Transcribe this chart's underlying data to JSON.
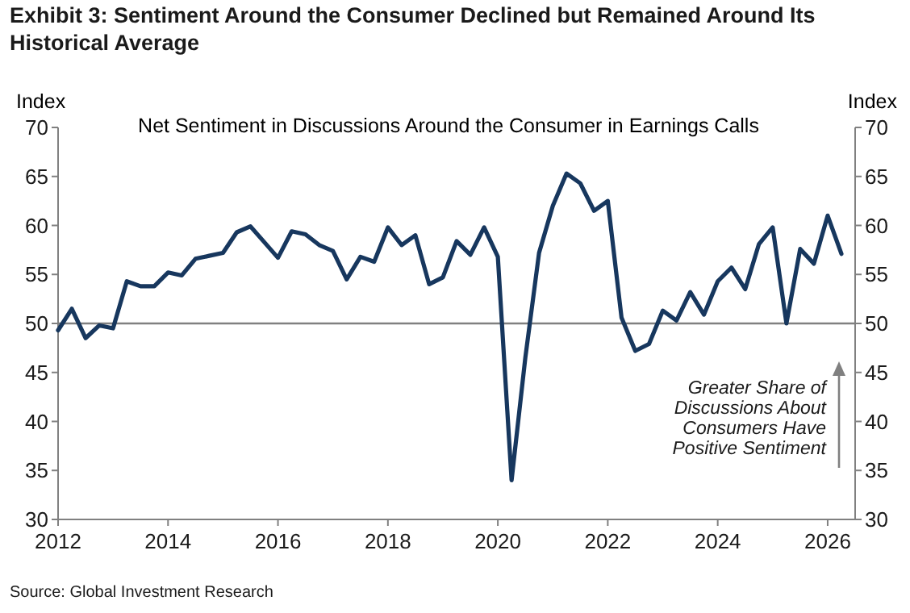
{
  "chart_data": {
    "type": "line",
    "title": "Exhibit 3: Sentiment Around the Consumer Declined but Remained Around Its Historical Average",
    "subtitle": "Net Sentiment in Discussions Around the Consumer in Earnings Calls",
    "ylabel": "Index",
    "y2label": "Index",
    "x": [
      2012,
      2012.25,
      2012.5,
      2012.75,
      2013,
      2013.25,
      2013.5,
      2013.75,
      2014,
      2014.25,
      2014.5,
      2014.75,
      2015,
      2015.25,
      2015.5,
      2015.75,
      2016,
      2016.25,
      2016.5,
      2016.75,
      2017,
      2017.25,
      2017.5,
      2017.75,
      2018,
      2018.25,
      2018.5,
      2018.75,
      2019,
      2019.25,
      2019.5,
      2019.75,
      2020,
      2020.25,
      2020.5,
      2020.75,
      2021,
      2021.25,
      2021.5,
      2021.75,
      2022,
      2022.25,
      2022.5,
      2022.75,
      2023,
      2023.25,
      2023.5,
      2023.75,
      2024,
      2024.25,
      2024.5,
      2024.75,
      2025,
      2025.25,
      2025.5,
      2025.75,
      2026,
      2026.25
    ],
    "series": [
      {
        "color": "#17375e",
        "values": [
          49.3,
          51.5,
          48.5,
          49.8,
          49.5,
          54.3,
          53.8,
          53.8,
          55.2,
          54.9,
          56.6,
          56.9,
          57.2,
          59.3,
          59.9,
          58.3,
          56.7,
          59.4,
          59.1,
          58.0,
          57.4,
          54.5,
          56.8,
          56.3,
          59.8,
          58.0,
          59.0,
          54.0,
          54.7,
          58.4,
          57.0,
          59.8,
          56.8,
          34.0,
          46.5,
          57.2,
          62.0,
          65.3,
          64.3,
          61.5,
          62.5,
          50.6,
          47.2,
          47.9,
          51.3,
          50.3,
          53.2,
          50.9,
          54.3,
          55.7,
          53.5,
          58.1,
          59.8,
          50.0,
          57.6,
          56.1,
          61.0,
          57.1
        ]
      }
    ],
    "xlim": [
      2012,
      2026.5
    ],
    "xticks": [
      2012,
      2014,
      2016,
      2018,
      2020,
      2022,
      2024,
      2026
    ],
    "ylim": [
      30,
      70
    ],
    "yticks": [
      30,
      35,
      40,
      45,
      50,
      55,
      60,
      65,
      70
    ],
    "y2lim": [
      30,
      70
    ],
    "y2ticks": [
      30,
      35,
      40,
      45,
      50,
      55,
      60,
      65,
      70
    ],
    "ref_lines": [
      {
        "axis": "y",
        "value": 50,
        "color": "#808080"
      }
    ],
    "annotations": [
      "Greater Share of\nDiscussions About\nConsumers Have\nPositive Sentiment",
      "Source: Global Investment Research"
    ],
    "grid": false,
    "marker": "none",
    "line_style": "solid"
  }
}
